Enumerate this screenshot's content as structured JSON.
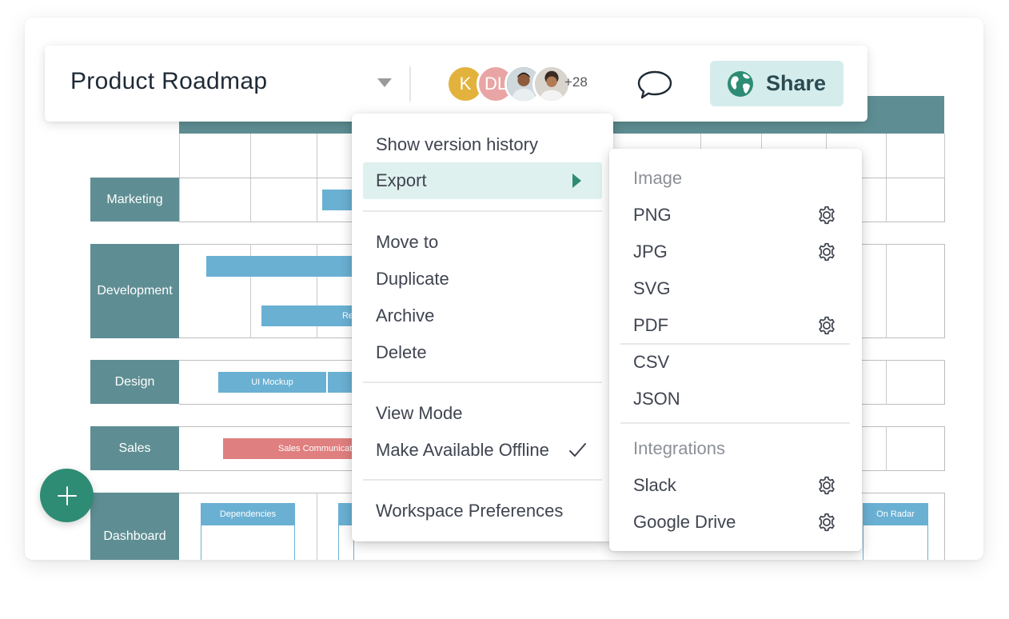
{
  "toolbar": {
    "title": "Product Roadmap",
    "avatars": [
      {
        "initials": "K",
        "color": "#e2b23c"
      },
      {
        "initials": "DL",
        "color": "#e9a5a5"
      },
      {
        "initials": "",
        "color": "#5b6b7c"
      },
      {
        "initials": "",
        "color": "#c8c3bc"
      }
    ],
    "more_collaborators": "+28",
    "share_label": "Share"
  },
  "board": {
    "rows": [
      {
        "label": "Marketing"
      },
      {
        "label": "Development"
      },
      {
        "label": "Design"
      },
      {
        "label": "Sales"
      },
      {
        "label": "Dashboard"
      }
    ],
    "bars": {
      "ui_mockup": "UI Mockup",
      "sales_communication": "Sales Communication",
      "dev_second": "Re"
    },
    "cards": {
      "dependencies": "Dependencies",
      "on_radar": "On Radar"
    }
  },
  "context_menu": {
    "show_version_history": "Show version history",
    "export": "Export",
    "move_to": "Move to",
    "duplicate": "Duplicate",
    "archive": "Archive",
    "delete": "Delete",
    "view_mode": "View Mode",
    "make_available_offline": "Make Available Offline",
    "workspace_preferences": "Workspace Preferences"
  },
  "export_menu": {
    "image_heading": "Image",
    "png": "PNG",
    "jpg": "JPG",
    "svg": "SVG",
    "pdf": "PDF",
    "csv": "CSV",
    "json": "JSON",
    "integrations_heading": "Integrations",
    "slack": "Slack",
    "google_drive": "Google Drive"
  },
  "colors": {
    "accent": "#2d8c73",
    "row_label": "#5e8e93",
    "bar_blue": "#6ab0d3",
    "bar_red": "#e07f7f",
    "share_bg": "#d5ecec",
    "menu_highlight": "#dff1ef"
  }
}
